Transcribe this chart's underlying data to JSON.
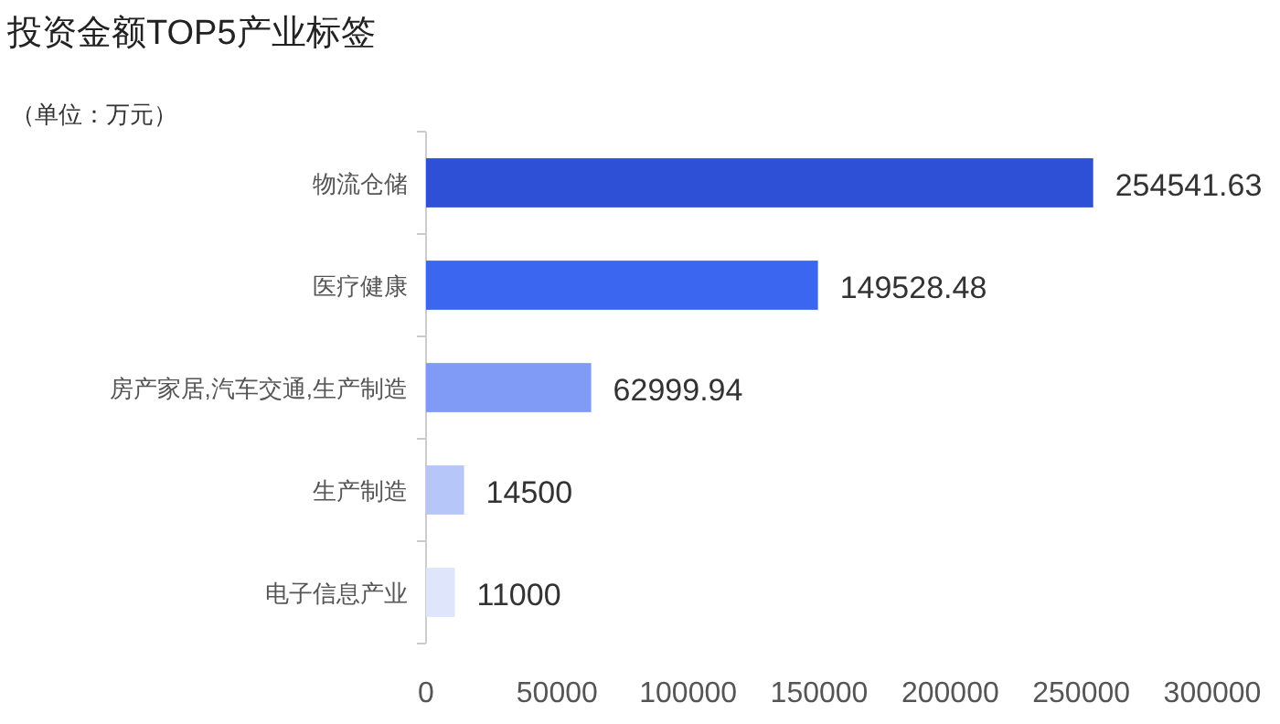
{
  "chart_data": {
    "type": "bar",
    "orientation": "horizontal",
    "title": "投资金额TOP5产业标签",
    "subtitle": "（单位：万元）",
    "categories": [
      "物流仓储",
      "医疗健康",
      "房产家居,汽车交通,生产制造",
      "生产制造",
      "电子信息产业"
    ],
    "values": [
      254541.63,
      149528.48,
      62999.94,
      14500,
      11000
    ],
    "colors": [
      "#2d50d6",
      "#3b66f0",
      "#7f9bf5",
      "#b7c6f9",
      "#dfe6fc"
    ],
    "xlim": [
      0,
      300000
    ],
    "xticks": [
      0,
      50000,
      100000,
      150000,
      200000,
      250000,
      300000
    ],
    "data_labels": true,
    "grid": false
  }
}
